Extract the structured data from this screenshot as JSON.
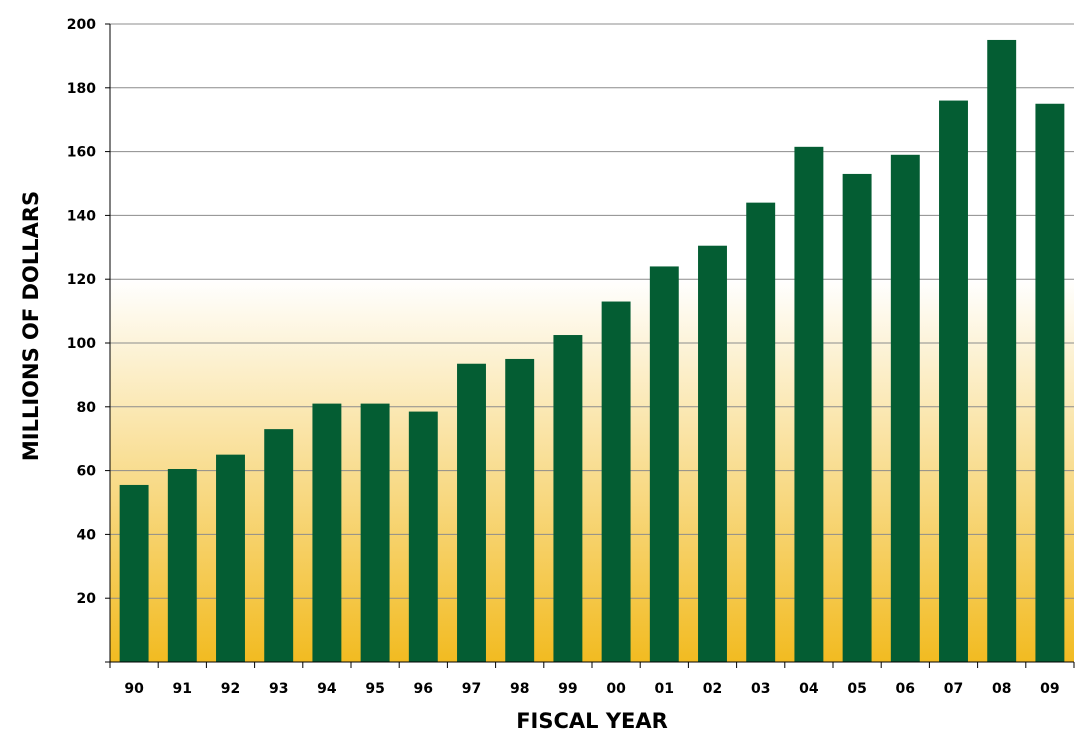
{
  "chart_data": {
    "type": "bar",
    "title": "",
    "xlabel": "FISCAL YEAR",
    "ylabel": "MILLIONS OF DOLLARS",
    "categories": [
      "90",
      "91",
      "92",
      "93",
      "94",
      "95",
      "96",
      "97",
      "98",
      "99",
      "00",
      "01",
      "02",
      "03",
      "04",
      "05",
      "06",
      "07",
      "08",
      "09"
    ],
    "values": [
      55.5,
      60.5,
      65,
      73,
      81,
      81,
      78.5,
      93.5,
      95,
      102.5,
      113,
      124,
      130.5,
      144,
      161.5,
      153,
      159,
      176,
      195,
      175
    ],
    "yticks": [
      20,
      40,
      60,
      80,
      100,
      120,
      140,
      160,
      180,
      200
    ],
    "ylim": [
      0,
      200
    ],
    "grid": true,
    "legend": "none",
    "colors": {
      "bar": "#045d33",
      "gridline": "#8c8c8c",
      "axis": "#000000",
      "background_top": "#ffffff",
      "background_bottom": "#f2bb21"
    }
  }
}
